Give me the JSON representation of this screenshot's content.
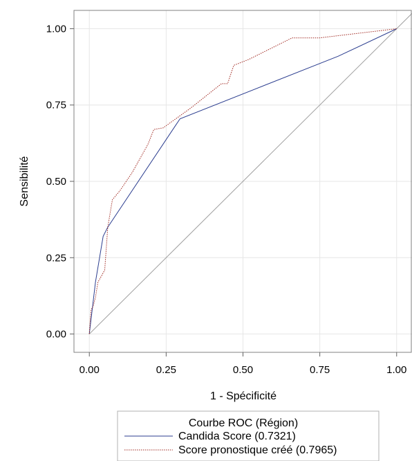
{
  "chart_data": {
    "type": "line",
    "xlabel": "1 - Spécificité",
    "ylabel": "Sensibilité",
    "xlim": [
      -0.05,
      1.05
    ],
    "ylim": [
      -0.06,
      1.06
    ],
    "xticks": [
      "0.00",
      "0.25",
      "0.50",
      "0.75",
      "1.00"
    ],
    "yticks": [
      "0.00",
      "0.25",
      "0.50",
      "0.75",
      "1.00"
    ],
    "grid": true,
    "legend": {
      "title": "Courbe ROC (Région)",
      "placement": "bottom"
    },
    "reference_line": {
      "x": [
        0,
        1.05
      ],
      "y": [
        0,
        1.05
      ],
      "color": "#a0a0a0"
    },
    "series": [
      {
        "name": "Candida Score  (0.7321)",
        "color": "#2b3d8f",
        "style": "solid",
        "x": [
          0,
          0.02,
          0.045,
          0.06,
          0.295,
          0.81,
          1.0
        ],
        "y": [
          0,
          0.17,
          0.32,
          0.35,
          0.705,
          0.91,
          1.0
        ]
      },
      {
        "name": "Score pronostique créé  (0.7965)",
        "color": "#a02820",
        "style": "dotted",
        "x": [
          0,
          0.003,
          0.006,
          0.012,
          0.02,
          0.028,
          0.045,
          0.05,
          0.06,
          0.075,
          0.1,
          0.14,
          0.19,
          0.21,
          0.24,
          0.33,
          0.43,
          0.45,
          0.46,
          0.47,
          0.52,
          0.66,
          0.75,
          1.0
        ],
        "y": [
          0,
          0.05,
          0.08,
          0.09,
          0.12,
          0.17,
          0.2,
          0.21,
          0.35,
          0.44,
          0.47,
          0.53,
          0.62,
          0.67,
          0.675,
          0.74,
          0.82,
          0.82,
          0.85,
          0.88,
          0.9,
          0.97,
          0.97,
          1.0
        ]
      }
    ]
  }
}
